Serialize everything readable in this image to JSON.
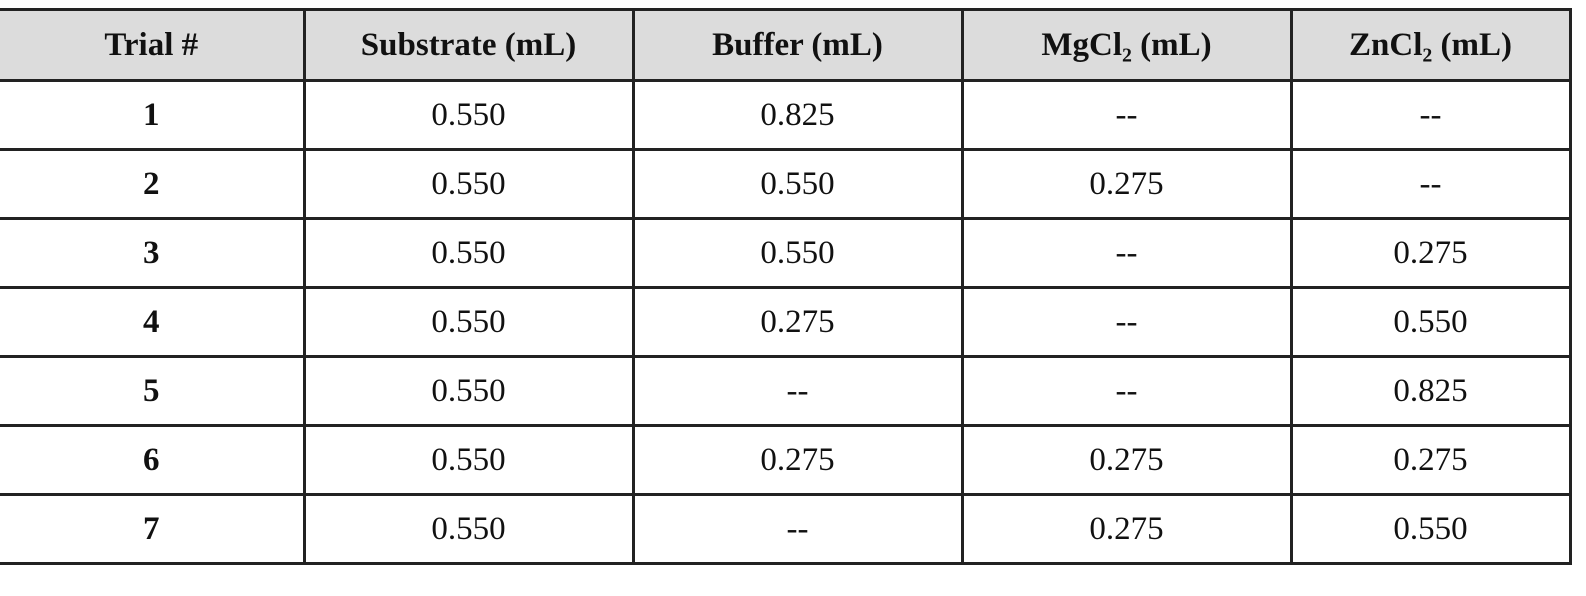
{
  "table": {
    "headers": [
      "Trial #",
      "Substrate (mL)",
      "Buffer (mL)",
      "MgCl₂ (mL)",
      "ZnCl₂ (mL)"
    ],
    "rows": [
      [
        "1",
        "0.550",
        "0.825",
        "--",
        "--"
      ],
      [
        "2",
        "0.550",
        "0.550",
        "0.275",
        "--"
      ],
      [
        "3",
        "0.550",
        "0.550",
        "--",
        "0.275"
      ],
      [
        "4",
        "0.550",
        "0.275",
        "--",
        "0.550"
      ],
      [
        "5",
        "0.550",
        "--",
        "--",
        "0.825"
      ],
      [
        "6",
        "0.550",
        "0.275",
        "0.275",
        "0.275"
      ],
      [
        "7",
        "0.550",
        "--",
        "0.275",
        "0.550"
      ]
    ]
  }
}
